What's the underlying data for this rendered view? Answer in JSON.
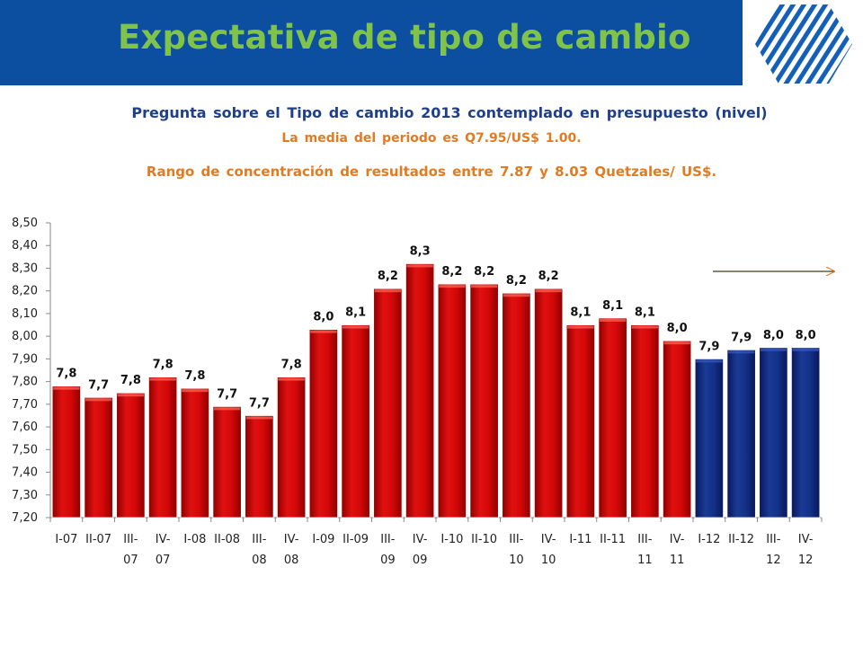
{
  "header": {
    "title": "Expectativa de tipo de cambio",
    "band_color": "#0c4fa0",
    "title_color": "#7fc34a",
    "logo_icon": "hexagon-stripes-logo-icon"
  },
  "subtitles": {
    "question": "Pregunta sobre el Tipo de cambio 2013 contemplado en presupuesto (nivel)",
    "mean": "La media del periodo es Q7.95/US$ 1.00.",
    "range": "Rango de concentración de resultados entre 7.87 y 8.03 Quetzales/ US$."
  },
  "chart_data": {
    "type": "bar",
    "categories": [
      "I-07",
      "II-07",
      "III-07",
      "IV-07",
      "I-08",
      "II-08",
      "III-08",
      "IV-08",
      "I-09",
      "II-09",
      "III-09",
      "IV-09",
      "I-10",
      "II-10",
      "III-10",
      "IV-10",
      "I-11",
      "II-11",
      "III-11",
      "IV-11",
      "I-12",
      "II-12",
      "III-12",
      "IV-12"
    ],
    "category_lines": [
      [
        "I-07"
      ],
      [
        "II-07"
      ],
      [
        "III-",
        "07"
      ],
      [
        "IV-",
        "07"
      ],
      [
        "I-08"
      ],
      [
        "II-08"
      ],
      [
        "III-",
        "08"
      ],
      [
        "IV-",
        "08"
      ],
      [
        "I-09"
      ],
      [
        "II-09"
      ],
      [
        "III-",
        "09"
      ],
      [
        "IV-",
        "09"
      ],
      [
        "I-10"
      ],
      [
        "II-10"
      ],
      [
        "III-",
        "10"
      ],
      [
        "IV-",
        "10"
      ],
      [
        "I-11"
      ],
      [
        "II-11"
      ],
      [
        "III-",
        "11"
      ],
      [
        "IV-",
        "11"
      ],
      [
        "I-12"
      ],
      [
        "II-12"
      ],
      [
        "III-",
        "12"
      ],
      [
        "IV-",
        "12"
      ]
    ],
    "values": [
      7.78,
      7.73,
      7.75,
      7.82,
      7.77,
      7.69,
      7.65,
      7.82,
      8.03,
      8.05,
      8.21,
      8.32,
      8.23,
      8.23,
      8.19,
      8.21,
      8.05,
      8.08,
      8.05,
      7.98,
      7.9,
      7.94,
      7.95,
      7.95
    ],
    "data_labels": [
      "7,8",
      "7,7",
      "7,8",
      "7,8",
      "7,8",
      "7,7",
      "7,7",
      "7,8",
      "8,0",
      "8,1",
      "8,2",
      "8,3",
      "8,2",
      "8,2",
      "8,2",
      "8,2",
      "8,1",
      "8,1",
      "8,1",
      "8,0",
      "7,9",
      "7,9",
      "8,0",
      "8,0"
    ],
    "bar_colors": [
      "red",
      "red",
      "red",
      "red",
      "red",
      "red",
      "red",
      "red",
      "red",
      "red",
      "red",
      "red",
      "red",
      "red",
      "red",
      "red",
      "red",
      "red",
      "red",
      "red",
      "blue",
      "blue",
      "blue",
      "blue"
    ],
    "colors": {
      "red": "#cc0000",
      "blue": "#0e2a78"
    },
    "yticks": [
      "7,20",
      "7,30",
      "7,40",
      "7,50",
      "7,60",
      "7,70",
      "7,80",
      "7,90",
      "8,00",
      "8,10",
      "8,20",
      "8,30",
      "8,40",
      "8,50"
    ],
    "ylim": [
      7.2,
      8.5
    ],
    "xlabel": "",
    "ylabel": "",
    "grid": false,
    "annotation": "arrow-right"
  }
}
